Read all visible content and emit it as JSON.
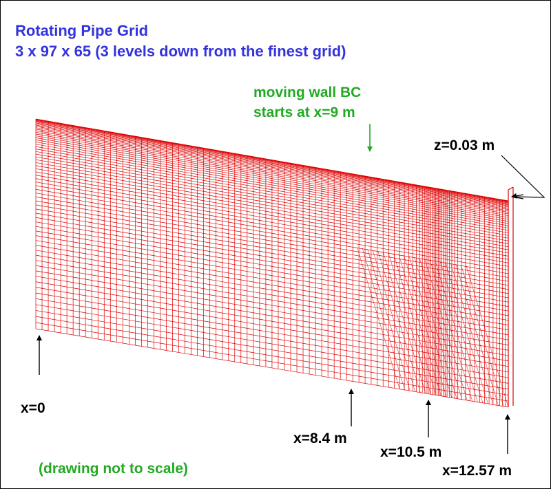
{
  "title": {
    "line1": "Rotating Pipe Grid",
    "line2": "3 x 97 x 65 (3 levels down from the finest grid)"
  },
  "annotations": {
    "moving_wall_line1": "moving wall BC",
    "moving_wall_line2": "starts at x=9 m",
    "z_label": "z=0.03 m",
    "x0_label": "x=0",
    "x84_label": "x=8.4 m",
    "x105_label": "x=10.5 m",
    "x1257_label": "x=12.57 m",
    "scale_note": "(drawing not to scale)"
  },
  "colors": {
    "title": "#3333dd",
    "annotation_green": "#22aa22",
    "mesh": "#dd0000",
    "text": "#000000"
  },
  "grid": {
    "dimensions": [
      3,
      97,
      65
    ],
    "x_min_m": 0,
    "x_max_m": 12.57,
    "z_m": 0.03,
    "moving_wall_start_x_m": 9,
    "marked_x_m": [
      0,
      8.4,
      10.5,
      12.57
    ]
  }
}
